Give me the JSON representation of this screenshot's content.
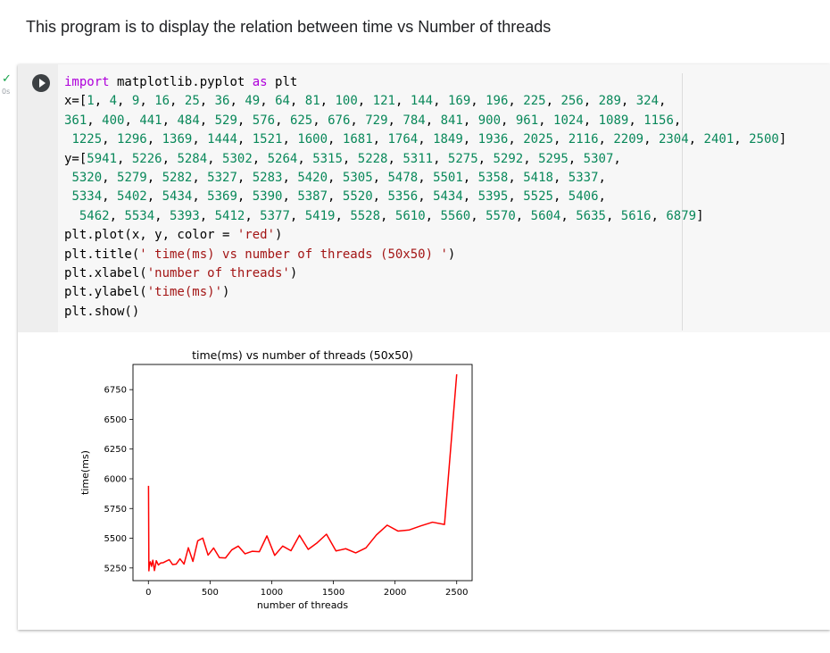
{
  "text_cell": {
    "content": "This program is to display the relation between time vs Number of threads"
  },
  "code_cell": {
    "status_icon": "check-icon",
    "execution_time": "0s",
    "run_icon": "play-icon",
    "code_lines": [
      "import matplotlib.pyplot as plt",
      "x=[1, 4, 9, 16, 25, 36, 49, 64, 81, 100, 121, 144, 169, 196, 225, 256, 289, 324,",
      "361, 400, 441, 484, 529, 576, 625, 676, 729, 784, 841, 900, 961, 1024, 1089, 1156,",
      " 1225, 1296, 1369, 1444, 1521, 1600, 1681, 1764, 1849, 1936, 2025, 2116, 2209, 2304, 2401, 2500]",
      "y=[5941, 5226, 5284, 5302, 5264, 5315, 5228, 5311, 5275, 5292, 5295, 5307,",
      " 5320, 5279, 5282, 5327, 5283, 5420, 5305, 5478, 5501, 5358, 5418, 5337,",
      " 5334, 5402, 5434, 5369, 5390, 5387, 5520, 5356, 5434, 5395, 5525, 5406,",
      "  5462, 5534, 5393, 5412, 5377, 5419, 5528, 5610, 5560, 5570, 5604, 5635, 5616, 6879]",
      "plt.plot(x, y, color = 'red')",
      "plt.title(' time(ms) vs number of threads (50x50) ')",
      "plt.xlabel('number of threads')",
      "plt.ylabel('time(ms)')",
      "plt.show()"
    ]
  },
  "chart_data": {
    "type": "line",
    "title": "time(ms) vs number of threads (50x50)",
    "xlabel": "number of threads",
    "ylabel": "time(ms)",
    "xlim": [
      -125,
      2625
    ],
    "ylim": [
      5143.35,
      6961.65
    ],
    "xticks": [
      0,
      500,
      1000,
      1500,
      2000,
      2500
    ],
    "yticks": [
      5250,
      5500,
      5750,
      6000,
      6250,
      6500,
      6750
    ],
    "grid": false,
    "series": [
      {
        "color": "#ff0000",
        "x": [
          1,
          4,
          9,
          16,
          25,
          36,
          49,
          64,
          81,
          100,
          121,
          144,
          169,
          196,
          225,
          256,
          289,
          324,
          361,
          400,
          441,
          484,
          529,
          576,
          625,
          676,
          729,
          784,
          841,
          900,
          961,
          1024,
          1089,
          1156,
          1225,
          1296,
          1369,
          1444,
          1521,
          1600,
          1681,
          1764,
          1849,
          1936,
          2025,
          2116,
          2209,
          2304,
          2401,
          2500
        ],
        "y": [
          5941,
          5226,
          5284,
          5302,
          5264,
          5315,
          5228,
          5311,
          5275,
          5292,
          5295,
          5307,
          5320,
          5279,
          5282,
          5327,
          5283,
          5420,
          5305,
          5478,
          5501,
          5358,
          5418,
          5337,
          5334,
          5402,
          5434,
          5369,
          5390,
          5387,
          5520,
          5356,
          5434,
          5395,
          5525,
          5406,
          5462,
          5534,
          5393,
          5412,
          5377,
          5419,
          5528,
          5610,
          5560,
          5570,
          5604,
          5635,
          5616,
          6879
        ]
      }
    ]
  }
}
